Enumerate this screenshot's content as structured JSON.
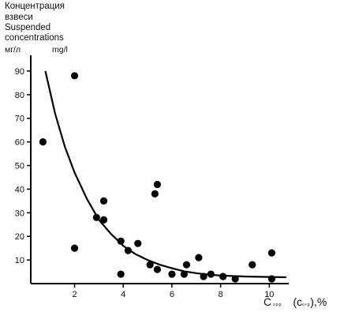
{
  "chart_data": {
    "type": "scatter",
    "ylabel_lines": [
      "Концентрация",
      "взвеси",
      "Suspended",
      "concentrations"
    ],
    "yunit_ru": "мг/л",
    "yunit_en": "mg/l",
    "xlabel": {
      "main": "C",
      "sub1": "орр",
      "paren_open": "(",
      "main2": "c",
      "sub2": "org",
      "tail": "),%"
    },
    "xlim": [
      0.2,
      10.8
    ],
    "ylim": [
      0,
      95
    ],
    "xticks": [
      2,
      4,
      6,
      8,
      10
    ],
    "yticks": [
      10,
      20,
      30,
      40,
      50,
      60,
      70,
      80,
      90
    ],
    "points": [
      {
        "x": 0.7,
        "y": 60
      },
      {
        "x": 2.0,
        "y": 88
      },
      {
        "x": 2.0,
        "y": 15
      },
      {
        "x": 2.9,
        "y": 28
      },
      {
        "x": 3.2,
        "y": 35
      },
      {
        "x": 3.2,
        "y": 27
      },
      {
        "x": 3.9,
        "y": 18
      },
      {
        "x": 3.9,
        "y": 4
      },
      {
        "x": 4.2,
        "y": 14
      },
      {
        "x": 4.6,
        "y": 17
      },
      {
        "x": 5.1,
        "y": 8
      },
      {
        "x": 5.3,
        "y": 38
      },
      {
        "x": 5.4,
        "y": 42
      },
      {
        "x": 5.4,
        "y": 6
      },
      {
        "x": 6.0,
        "y": 4
      },
      {
        "x": 6.5,
        "y": 4
      },
      {
        "x": 6.6,
        "y": 8
      },
      {
        "x": 7.1,
        "y": 11
      },
      {
        "x": 7.3,
        "y": 3
      },
      {
        "x": 7.6,
        "y": 4
      },
      {
        "x": 8.1,
        "y": 3
      },
      {
        "x": 8.6,
        "y": 2
      },
      {
        "x": 9.3,
        "y": 8
      },
      {
        "x": 10.1,
        "y": 13
      },
      {
        "x": 10.1,
        "y": 2
      }
    ],
    "trend": [
      {
        "x": 0.8,
        "y": 90
      },
      {
        "x": 1.2,
        "y": 72
      },
      {
        "x": 1.6,
        "y": 58
      },
      {
        "x": 2.0,
        "y": 47
      },
      {
        "x": 2.5,
        "y": 36
      },
      {
        "x": 3.0,
        "y": 27
      },
      {
        "x": 3.5,
        "y": 21
      },
      {
        "x": 4.0,
        "y": 16
      },
      {
        "x": 4.5,
        "y": 12.5
      },
      {
        "x": 5.0,
        "y": 10
      },
      {
        "x": 5.5,
        "y": 8
      },
      {
        "x": 6.0,
        "y": 6.5
      },
      {
        "x": 6.5,
        "y": 5.2
      },
      {
        "x": 7.0,
        "y": 4.4
      },
      {
        "x": 7.5,
        "y": 3.8
      },
      {
        "x": 8.0,
        "y": 3.4
      },
      {
        "x": 9.0,
        "y": 3.0
      },
      {
        "x": 10.0,
        "y": 2.8
      },
      {
        "x": 10.7,
        "y": 2.7
      }
    ],
    "grid": false,
    "marker_color": "#000000",
    "line_color": "#000000"
  }
}
